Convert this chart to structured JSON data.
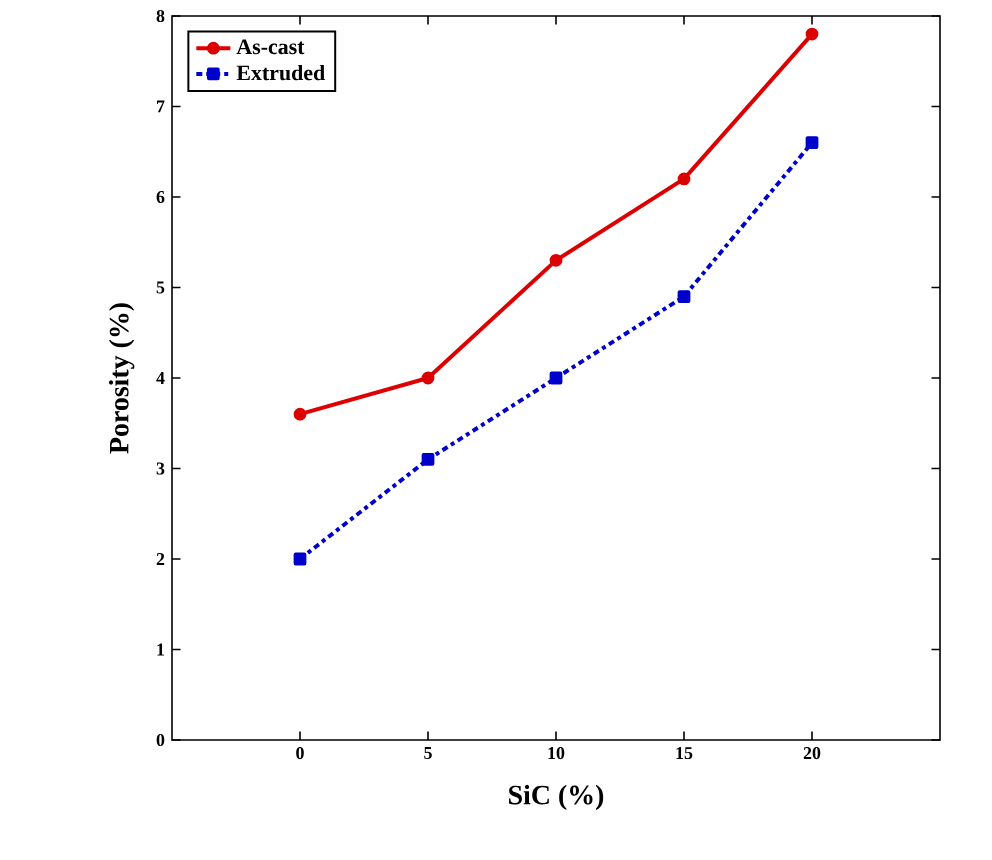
{
  "chart_data": {
    "type": "line",
    "xlabel": "SiC (%)",
    "ylabel": "Porosity (%)",
    "x": [
      0,
      5,
      10,
      15,
      20
    ],
    "series": [
      {
        "name": "As-cast",
        "color": "#dd0000",
        "values": [
          3.6,
          4.0,
          5.3,
          6.2,
          7.8
        ],
        "marker": "circle",
        "line_style": "solid"
      },
      {
        "name": "Extruded",
        "color": "#0000cc",
        "values": [
          2.0,
          3.1,
          4.0,
          4.9,
          6.6
        ],
        "marker": "square",
        "line_style": "dashdot"
      }
    ],
    "xlim": [
      -5,
      25
    ],
    "xticks": [
      0,
      5,
      10,
      15,
      20
    ],
    "ylim": [
      0,
      8
    ],
    "yticks": [
      0,
      1,
      2,
      3,
      4,
      5,
      6,
      7,
      8
    ],
    "grid": false,
    "legend": "top left"
  }
}
